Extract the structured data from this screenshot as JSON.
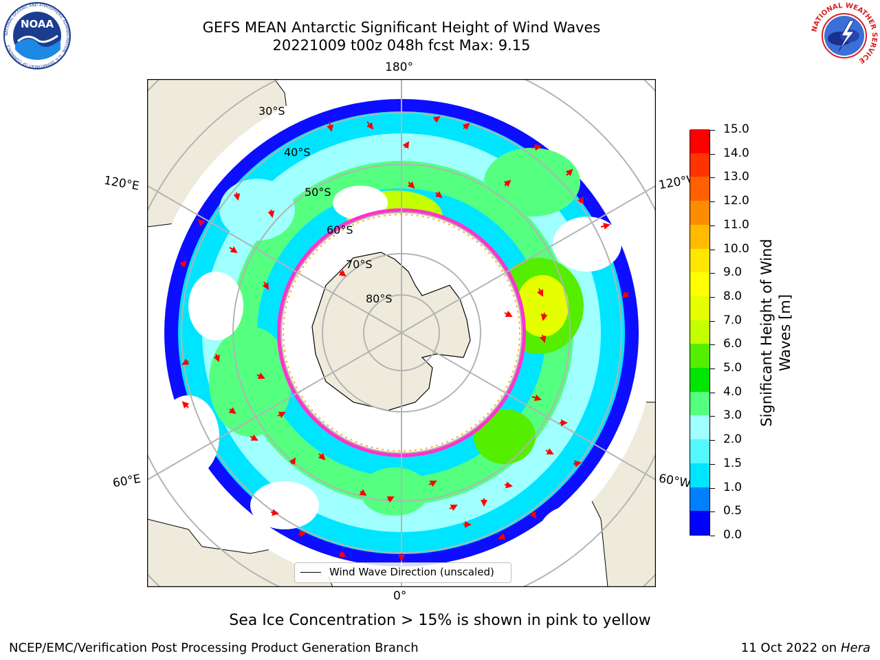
{
  "header": {
    "title_line1": "GEFS MEAN Antarctic Significant Height of Wind Waves",
    "title_line2": "20221009 t00z 048h fcst   Max: 9.15"
  },
  "logos": {
    "left": {
      "text": "NOAA",
      "ring_text": "NATIONAL OCEANIC AND ATMOSPHERIC ADMINISTRATION · U.S. DEPARTMENT OF COMMERCE",
      "icon": "noaa-logo"
    },
    "right": {
      "ring_text": "NATIONAL WEATHER SERVICE",
      "icon": "nws-logo"
    }
  },
  "map": {
    "projection": "south-polar-stereographic",
    "longitude_labels": {
      "top": "180°",
      "bottom": "0°",
      "upper_left": "120°E",
      "upper_right": "120°W",
      "lower_left": "60°E",
      "lower_right": "60°W"
    },
    "latitude_labels": [
      "30°S",
      "40°S",
      "50°S",
      "60°S",
      "70°S",
      "80°S"
    ],
    "legend": "Wind Wave Direction (unscaled)",
    "colors": {
      "land": "#efebdc",
      "ocean_nodata": "#ffffff",
      "arrow": "#ff0000",
      "ice_edge": "#ff33cc"
    }
  },
  "colorbar": {
    "title_line1": "Significant Height of Wind",
    "title_line2": "Waves [m]",
    "ticks": [
      "0.0",
      "0.5",
      "1.0",
      "1.5",
      "2.0",
      "3.0",
      "4.0",
      "5.0",
      "6.0",
      "7.0",
      "8.0",
      "9.0",
      "10.0",
      "11.0",
      "12.0",
      "13.0",
      "14.0",
      "15.0"
    ],
    "colors": [
      "#0000ff",
      "#0080ff",
      "#00e5ff",
      "#55f7ff",
      "#a0ffff",
      "#55ff80",
      "#00e600",
      "#55ee00",
      "#c4ff00",
      "#e6ff00",
      "#ffff00",
      "#ffe600",
      "#ffbb00",
      "#ff8c00",
      "#ff6000",
      "#ff3300",
      "#ff0000"
    ]
  },
  "notes": {
    "sea_ice": "Sea Ice Concentration > 15% is shown in pink to yellow"
  },
  "footer": {
    "left": "NCEP/EMC/Verification Post Processing Product Generation Branch",
    "right_prefix": "11 Oct 2022 on ",
    "right_machine": "Hera"
  }
}
